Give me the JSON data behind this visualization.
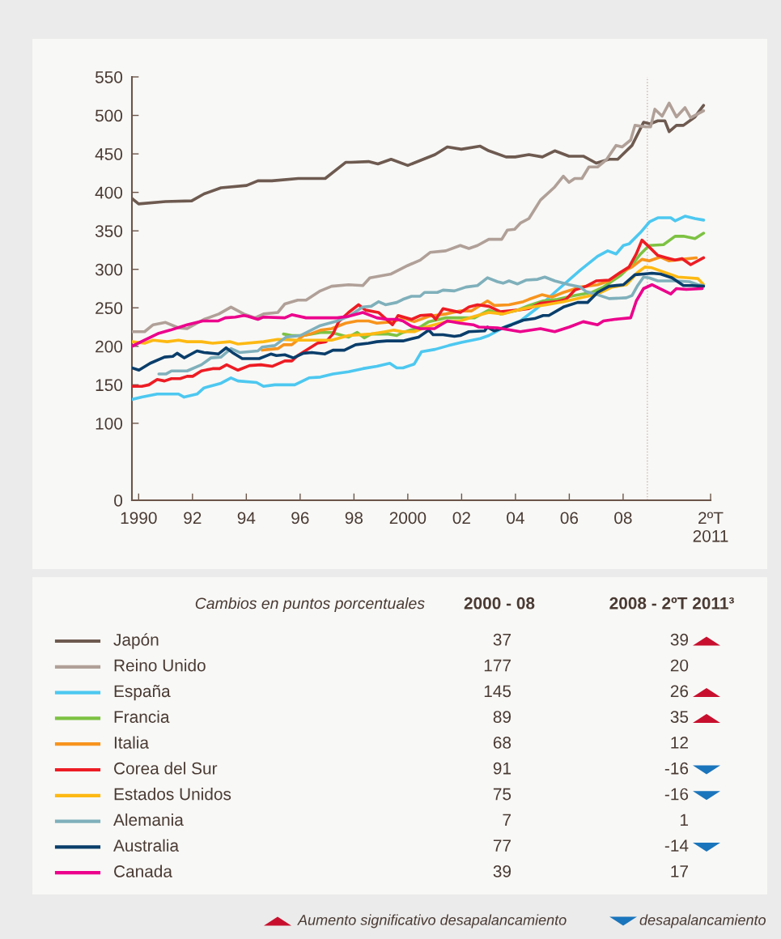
{
  "chart_data": {
    "type": "line",
    "xlim": [
      1989.75,
      2011.25
    ],
    "ylim": [
      0,
      550
    ],
    "xticks": [
      1990,
      {
        "value": 1992,
        "label": "92"
      },
      {
        "value": 1994,
        "label": "94"
      },
      {
        "value": 1996,
        "label": "96"
      },
      {
        "value": 1998,
        "label": "98"
      },
      2000,
      {
        "value": 2002,
        "label": "02"
      },
      {
        "value": 2004,
        "label": "04"
      },
      {
        "value": 2006,
        "label": "06"
      },
      {
        "value": 2008,
        "label": "08"
      },
      {
        "value": 2011.25,
        "label": "2ºT\n2011"
      }
    ],
    "yticks": [
      0,
      100,
      150,
      200,
      250,
      300,
      350,
      400,
      450,
      500,
      550
    ],
    "ref_lines": [
      {
        "axis": "x",
        "value": 2008.9,
        "color": "#c9b6b0",
        "line_style": "dotted"
      }
    ],
    "legend": "bottom",
    "series": [
      {
        "name": "Japón",
        "color": "#6e5a50",
        "x": [
          1989.75,
          1990,
          1991,
          1991.97,
          1992.43,
          1993.06,
          1994.01,
          1994.43,
          1994.95,
          1995.93,
          1996.93,
          1997.69,
          1997.89,
          1998.54,
          1998.89,
          1999.38,
          2000.0,
          2001.01,
          2001.47,
          2001.99,
          2002.69,
          2003.01,
          2003.65,
          2003.99,
          2004.5,
          2005.0,
          2005.46,
          2005.99,
          2006.52,
          2007.0,
          2007.48,
          2007.8,
          2008.33,
          2008.76,
          2009.0,
          2009.29,
          2009.55,
          2009.71,
          2009.98,
          2010.24,
          2010.67,
          2010.99
        ],
        "values": [
          392,
          385,
          388,
          389,
          398,
          406,
          409,
          415,
          415,
          418,
          418,
          439,
          439,
          440,
          437,
          443,
          435,
          449,
          459,
          456,
          460,
          454,
          446,
          446,
          449,
          446,
          454,
          447,
          447,
          438,
          443,
          443,
          461,
          491,
          489,
          493,
          493,
          479,
          487,
          487,
          498,
          513
        ]
      },
      {
        "name": "Reino Unido",
        "color": "#b0a098",
        "x": [
          1989.75,
          1990.22,
          1990.54,
          1991.0,
          1991.48,
          1991.8,
          1992.43,
          1992.98,
          1993.43,
          1993.91,
          1994.33,
          1994.64,
          1995.17,
          1995.43,
          1995.91,
          1996.22,
          1996.75,
          1997.17,
          1997.8,
          1998.33,
          1998.59,
          1999.38,
          2000.0,
          2000.46,
          2000.83,
          2001.41,
          2001.95,
          2002.27,
          2002.59,
          2003.01,
          2003.49,
          2003.7,
          2003.97,
          2004.18,
          2004.5,
          2004.93,
          2005.46,
          2005.78,
          2005.99,
          2006.2,
          2006.47,
          2006.73,
          2007.05,
          2007.37,
          2007.74,
          2007.96,
          2008.28,
          2008.44,
          2008.86,
          2009.02,
          2009.18,
          2009.45,
          2009.71,
          2009.98,
          2010.3,
          2010.51,
          2010.99
        ],
        "values": [
          219,
          219,
          228,
          231,
          224,
          223,
          235,
          242,
          251,
          242,
          237,
          242,
          244,
          255,
          260,
          260,
          272,
          278,
          280,
          279,
          289,
          294,
          305,
          312,
          322,
          324,
          331,
          327,
          331,
          339,
          339,
          351,
          352,
          360,
          366,
          390,
          407,
          421,
          413,
          418,
          418,
          433,
          433,
          442,
          461,
          459,
          468,
          487,
          485,
          485,
          508,
          499,
          516,
          498,
          510,
          497,
          506
        ]
      },
      {
        "name": "España",
        "color": "#4dc8f0",
        "x": [
          1989.75,
          1990.12,
          1990.69,
          1991.48,
          1991.69,
          1992.17,
          1992.43,
          1993.06,
          1993.43,
          1993.69,
          1994.38,
          1994.64,
          1995.06,
          1995.8,
          1996.33,
          1996.75,
          1997.22,
          1997.8,
          1998.33,
          1998.85,
          1999.33,
          1999.59,
          1999.82,
          2000.24,
          2000.51,
          2001.01,
          2001.52,
          2001.99,
          2002.69,
          2003.01,
          2003.65,
          2004.18,
          2004.82,
          2005.46,
          2006.41,
          2007.05,
          2007.43,
          2007.74,
          2008.01,
          2008.22,
          2008.65,
          2008.99,
          2009.29,
          2009.77,
          2009.93,
          2010.3,
          2010.67,
          2010.99
        ],
        "values": [
          131,
          134,
          138,
          138,
          134,
          138,
          146,
          152,
          159,
          155,
          153,
          148,
          150,
          150,
          159,
          160,
          164,
          167,
          171,
          174,
          178,
          172,
          172,
          177,
          193,
          196,
          201,
          205,
          210,
          214,
          226,
          233,
          250,
          270,
          299,
          317,
          324,
          320,
          331,
          333,
          348,
          362,
          367,
          367,
          363,
          369,
          366,
          364
        ]
      },
      {
        "name": "Francia",
        "color": "#7dc242",
        "x": [
          1995.38,
          1995.69,
          1996.12,
          1996.75,
          1997.17,
          1997.8,
          1998.12,
          1998.38,
          1998.64,
          1999.27,
          1999.59,
          1999.82,
          2000.46,
          2000.78,
          2001.41,
          2002.48,
          2003.01,
          2003.44,
          2004.07,
          2004.5,
          2005.03,
          2005.56,
          2006.2,
          2006.84,
          2007.27,
          2007.9,
          2008.33,
          2008.65,
          2008.97,
          2009.5,
          2009.93,
          2010.24,
          2010.67,
          2010.99
        ],
        "values": [
          216,
          214,
          214,
          218,
          218,
          212,
          218,
          211,
          216,
          216,
          214,
          218,
          225,
          232,
          237,
          237,
          247,
          242,
          247,
          253,
          259,
          261,
          266,
          270,
          277,
          292,
          306,
          320,
          331,
          332,
          343,
          343,
          340,
          347
        ]
      },
      {
        "name": "Italia",
        "color": "#f7941d",
        "x": [
          1994.59,
          1995.17,
          1995.38,
          1995.69,
          1996.12,
          1996.38,
          1996.75,
          1997.17,
          1997.69,
          1998.12,
          1998.54,
          1998.85,
          1999.48,
          1999.82,
          2000.24,
          2000.78,
          2001.41,
          2001.95,
          2002.37,
          2002.96,
          2003.22,
          2003.76,
          2004.29,
          2004.5,
          2004.98,
          2005.35,
          2005.78,
          2006.41,
          2007.05,
          2007.48,
          2007.9,
          2008.33,
          2008.7,
          2008.97,
          2009.39,
          2009.71,
          2010.19,
          2010.72
        ],
        "values": [
          195,
          197,
          202,
          202,
          214,
          216,
          221,
          223,
          230,
          233,
          233,
          230,
          232,
          237,
          232,
          239,
          242,
          246,
          246,
          259,
          253,
          254,
          258,
          261,
          267,
          264,
          270,
          277,
          280,
          285,
          296,
          303,
          313,
          311,
          316,
          311,
          313,
          315
        ]
      },
      {
        "name": "Corea del Sur",
        "color": "#ed1c24",
        "x": [
          1989.75,
          1990.12,
          1990.38,
          1990.69,
          1990.96,
          1991.22,
          1991.54,
          1991.8,
          1992.01,
          1992.33,
          1992.75,
          1993.01,
          1993.27,
          1993.69,
          1994.12,
          1994.54,
          1994.96,
          1995.43,
          1995.69,
          1995.91,
          1996.64,
          1996.96,
          1997.22,
          1997.43,
          1997.8,
          1998.17,
          1998.43,
          1998.91,
          1999.43,
          1999.64,
          2000.14,
          2000.46,
          2000.88,
          2001.04,
          2001.31,
          2001.95,
          2002.27,
          2002.59,
          2003.01,
          2003.44,
          2004.07,
          2004.5,
          2004.93,
          2005.56,
          2005.88,
          2006.2,
          2006.63,
          2007.0,
          2007.48,
          2007.9,
          2008.22,
          2008.49,
          2008.7,
          2008.97,
          2009.29,
          2009.61,
          2009.93,
          2010.19,
          2010.51,
          2010.99
        ],
        "values": [
          148,
          148,
          150,
          157,
          155,
          158,
          158,
          161,
          161,
          168,
          171,
          171,
          176,
          169,
          175,
          176,
          174,
          181,
          181,
          188,
          204,
          206,
          216,
          232,
          244,
          254,
          247,
          244,
          228,
          240,
          235,
          240,
          241,
          235,
          249,
          244,
          251,
          254,
          252,
          245,
          247,
          249,
          256,
          258,
          261,
          273,
          278,
          285,
          286,
          296,
          303,
          320,
          338,
          329,
          318,
          315,
          312,
          314,
          306,
          315
        ]
      },
      {
        "name": "Estados Unidos",
        "color": "#fdb913",
        "x": [
          1989.75,
          1990.22,
          1990.54,
          1991.06,
          1991.48,
          1991.8,
          1992.33,
          1992.75,
          1993.38,
          1993.69,
          1994.64,
          1995.17,
          1995.91,
          1997.17,
          1997.8,
          1998.64,
          1999.17,
          1999.48,
          1999.8,
          2000.24,
          2000.67,
          2001.41,
          2001.95,
          2002.48,
          2003.01,
          2003.54,
          2004.07,
          2004.61,
          2005.14,
          2005.78,
          2006.41,
          2007.05,
          2007.59,
          2008.12,
          2008.54,
          2008.81,
          2009.07,
          2009.39,
          2009.71,
          2010.03,
          2010.46,
          2010.78,
          2010.99
        ],
        "values": [
          206,
          204,
          208,
          206,
          208,
          206,
          206,
          204,
          206,
          203,
          206,
          209,
          208,
          208,
          214,
          216,
          219,
          221,
          219,
          219,
          225,
          232,
          233,
          239,
          244,
          242,
          247,
          251,
          254,
          258,
          263,
          268,
          277,
          280,
          296,
          303,
          302,
          298,
          294,
          290,
          289,
          288,
          280
        ]
      },
      {
        "name": "Alemania",
        "color": "#7fb0bb",
        "x": [
          1990.75,
          1991.01,
          1991.22,
          1991.8,
          1992.33,
          1992.69,
          1993.06,
          1993.43,
          1993.75,
          1994.43,
          1994.59,
          1995.06,
          1995.48,
          1996.01,
          1996.75,
          1997.38,
          1997.8,
          1998.33,
          1998.64,
          1998.91,
          1999.17,
          1999.59,
          1999.82,
          2000.14,
          2000.46,
          2000.62,
          2001.1,
          2001.31,
          2001.73,
          2002.16,
          2002.59,
          2002.96,
          2003.33,
          2003.54,
          2003.76,
          2004.07,
          2004.39,
          2004.82,
          2005.09,
          2005.46,
          2006.0,
          2006.41,
          2006.63,
          2007.05,
          2007.48,
          2008.12,
          2008.33,
          2008.54,
          2008.76,
          2008.97,
          2009.29,
          2009.93,
          2010.46,
          2010.78,
          2010.99
        ],
        "values": [
          164,
          164,
          168,
          168,
          176,
          185,
          186,
          197,
          192,
          194,
          199,
          201,
          212,
          214,
          227,
          233,
          239,
          251,
          252,
          258,
          254,
          257,
          261,
          265,
          265,
          270,
          270,
          273,
          272,
          277,
          279,
          289,
          284,
          282,
          285,
          281,
          286,
          287,
          290,
          285,
          280,
          277,
          271,
          267,
          262,
          263,
          266,
          279,
          290,
          289,
          285,
          285,
          284,
          280,
          279
        ]
      },
      {
        "name": "Australia",
        "color": "#0a3e6b",
        "x": [
          1989.75,
          1990.01,
          1990.43,
          1990.96,
          1991.27,
          1991.43,
          1991.69,
          1992.17,
          1992.43,
          1992.96,
          1993.25,
          1993.48,
          1993.85,
          1994.48,
          1994.91,
          1995.12,
          1995.43,
          1995.75,
          1996.12,
          1996.43,
          1996.91,
          1997.22,
          1997.64,
          1998.06,
          1998.54,
          1998.85,
          1999.22,
          1999.59,
          1999.82,
          2000.4,
          2000.78,
          2000.94,
          2001.31,
          2001.73,
          2001.95,
          2002.27,
          2002.85,
          2002.96,
          2003.22,
          2003.86,
          2004.29,
          2004.71,
          2005.03,
          2005.24,
          2005.78,
          2006.31,
          2006.68,
          2007.05,
          2007.48,
          2008.01,
          2008.44,
          2008.76,
          2009.07,
          2009.39,
          2009.82,
          2010.24,
          2010.56,
          2010.99
        ],
        "values": [
          172,
          169,
          178,
          186,
          187,
          191,
          185,
          194,
          192,
          190,
          198,
          192,
          184,
          184,
          190,
          188,
          189,
          185,
          191,
          192,
          190,
          195,
          195,
          202,
          204,
          206,
          207,
          207,
          207,
          212,
          221,
          215,
          215,
          213,
          214,
          219,
          220,
          225,
          220,
          228,
          234,
          236,
          240,
          240,
          251,
          257,
          257,
          270,
          278,
          280,
          293,
          294,
          295,
          294,
          289,
          279,
          279,
          278
        ]
      },
      {
        "name": "Canada",
        "color": "#ec008c",
        "x": [
          1989.75,
          1990.22,
          1990.75,
          1991.17,
          1991.8,
          1992.38,
          1992.96,
          1993.22,
          1993.59,
          1993.91,
          1994.06,
          1994.43,
          1994.64,
          1995.43,
          1995.69,
          1996.22,
          1997.38,
          1997.8,
          1998.33,
          1998.85,
          1999.22,
          1999.59,
          1999.82,
          2000.14,
          2000.46,
          2000.99,
          2001.47,
          2001.95,
          2002.43,
          2002.64,
          2003.33,
          2004.18,
          2004.93,
          2005.46,
          2006.0,
          2006.52,
          2007.05,
          2007.27,
          2007.69,
          2008.28,
          2008.49,
          2008.76,
          2009.07,
          2009.77,
          2009.98,
          2010.35,
          2010.94
        ],
        "values": [
          200,
          208,
          217,
          221,
          228,
          233,
          233,
          237,
          238,
          240,
          239,
          235,
          238,
          237,
          241,
          237,
          237,
          239,
          244,
          237,
          235,
          235,
          233,
          226,
          223,
          223,
          233,
          230,
          228,
          225,
          224,
          219,
          223,
          219,
          225,
          232,
          228,
          233,
          235,
          237,
          259,
          275,
          280,
          268,
          275,
          274,
          275
        ]
      }
    ],
    "annotations": [
      "Cambios en puntos porcentuales",
      "2000 - 08",
      "2008 - 2ºT 2011³",
      "37",
      "39",
      "177",
      "20",
      "145",
      "26",
      "89",
      "35",
      "68",
      "12",
      "91",
      "-16",
      "75",
      "-16",
      "7",
      "1",
      "77",
      "-14",
      "39",
      "17",
      "Aumento significativo desapalancamiento",
      "desapalancamiento"
    ]
  }
}
